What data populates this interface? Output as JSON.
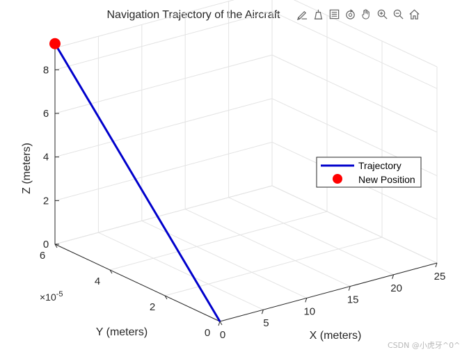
{
  "chart_data": {
    "type": "line3d",
    "title": "Navigation Trajectory of the Aircraft",
    "xlabel": "X (meters)",
    "ylabel": "Y (meters)",
    "zlabel": "Z (meters)",
    "xlim": [
      0,
      25
    ],
    "ylim": [
      0,
      6e-05
    ],
    "zlim": [
      0,
      9
    ],
    "x_ticks": [
      0,
      5,
      10,
      15,
      20,
      25
    ],
    "x_tick_labels": [
      "0",
      "5",
      "10",
      "15",
      "20",
      "25"
    ],
    "y_ticks": [
      0,
      2e-05,
      4e-05,
      6e-05
    ],
    "y_tick_labels": [
      "0",
      "2",
      "4",
      "6"
    ],
    "y_exponent_label": "×10",
    "y_exponent_power": "-5",
    "z_ticks": [
      0,
      2,
      4,
      6,
      8
    ],
    "z_tick_labels": [
      "0",
      "2",
      "4",
      "6",
      "8"
    ],
    "grid": true,
    "legend_position": "right",
    "series": [
      {
        "name": "Trajectory",
        "style": "line",
        "color": "#0000cc",
        "points": [
          {
            "x": 0,
            "y": 0,
            "z": 0
          },
          {
            "x": 0,
            "y": 6e-05,
            "z": 9.2
          }
        ]
      },
      {
        "name": "New Position",
        "style": "marker",
        "color": "#ff0000",
        "points": [
          {
            "x": 0,
            "y": 6e-05,
            "z": 9.2
          }
        ]
      }
    ]
  },
  "toolbar": {
    "items": [
      {
        "name": "brush-icon"
      },
      {
        "name": "data-tips-icon"
      },
      {
        "name": "legend-icon"
      },
      {
        "name": "rotate-icon"
      },
      {
        "name": "pan-icon"
      },
      {
        "name": "zoom-in-icon"
      },
      {
        "name": "zoom-out-icon"
      },
      {
        "name": "home-icon"
      }
    ]
  },
  "watermark": "CSDN @小虎牙^0^"
}
